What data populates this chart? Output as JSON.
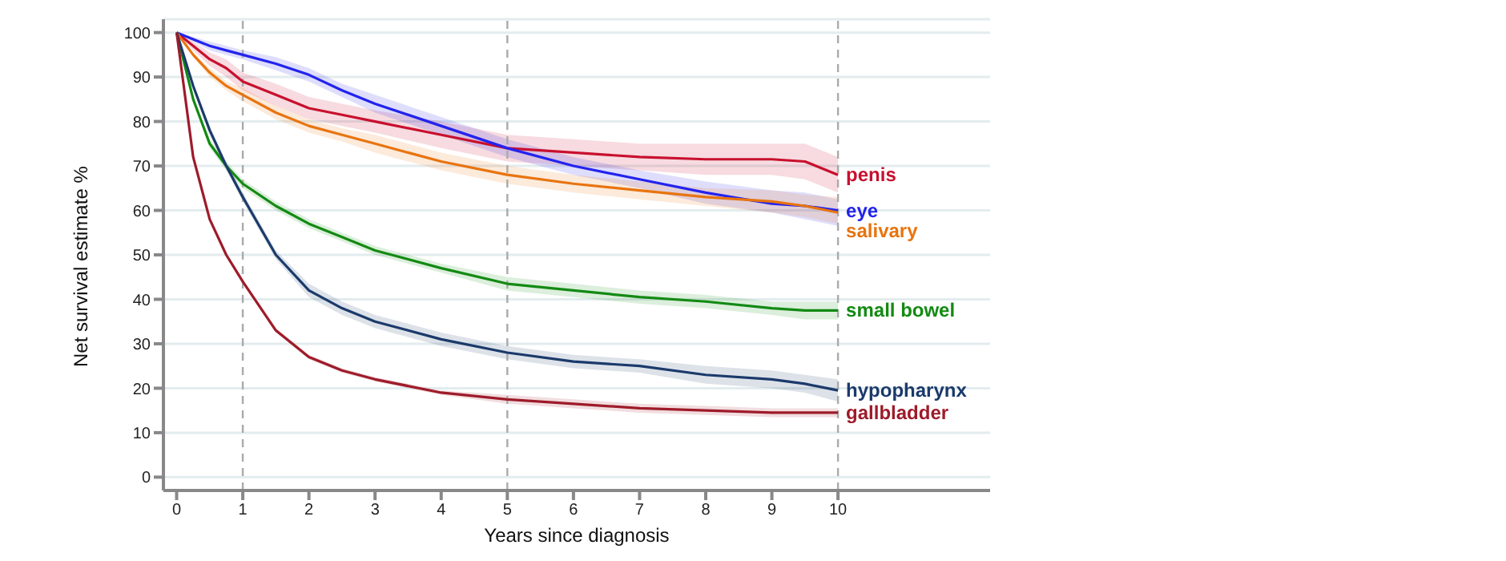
{
  "chart_data": {
    "type": "line",
    "xlabel": "Years since diagnosis",
    "ylabel": "Net survival estimate %",
    "x": [
      0,
      0.25,
      0.5,
      0.75,
      1,
      1.5,
      2,
      2.5,
      3,
      4,
      5,
      6,
      7,
      8,
      9,
      9.5,
      10
    ],
    "series": [
      {
        "name": "penis",
        "color": "#c8102e",
        "values": [
          100,
          97,
          94,
          92,
          89,
          86,
          83,
          81.5,
          80,
          77,
          74,
          73,
          72,
          71.5,
          71.5,
          71,
          68
        ],
        "lower": [
          100,
          96,
          92.5,
          90,
          87,
          83.5,
          80.5,
          79,
          77.5,
          74,
          71,
          70,
          69,
          68,
          68,
          67,
          64
        ],
        "upper": [
          100,
          98,
          95.5,
          94,
          91,
          88.5,
          85.5,
          84,
          82.5,
          80,
          77,
          76,
          75,
          75,
          75,
          75,
          72
        ]
      },
      {
        "name": "eye",
        "color": "#2323ee",
        "values": [
          100,
          98.5,
          97,
          96,
          95,
          93,
          90.5,
          87,
          84,
          79,
          74,
          70,
          67,
          64,
          61.5,
          61,
          60
        ],
        "lower": [
          100,
          98,
          96,
          95,
          94,
          91.5,
          89,
          85.5,
          82,
          77,
          72,
          68,
          65,
          61.5,
          59.5,
          58,
          56.5
        ],
        "upper": [
          100,
          99,
          98,
          97,
          96,
          94.5,
          92,
          88.5,
          86,
          81,
          76,
          72,
          69,
          66.5,
          64.5,
          64,
          62.5
        ]
      },
      {
        "name": "salivary",
        "color": "#e8740f",
        "values": [
          100,
          95,
          91,
          88,
          86,
          82,
          79,
          77,
          75,
          71,
          68,
          66,
          64.5,
          63,
          62,
          61,
          59.5
        ],
        "lower": [
          100,
          94.5,
          90,
          87,
          84.5,
          80.5,
          77.5,
          75.5,
          73,
          69,
          66,
          64,
          62.5,
          61,
          59.5,
          58.5,
          57
        ],
        "upper": [
          100,
          95.5,
          92,
          89,
          87.5,
          83.5,
          80.5,
          78.5,
          77,
          73,
          70,
          68,
          66.5,
          65,
          64.5,
          63.5,
          63
        ]
      },
      {
        "name": "small bowel",
        "color": "#138a13",
        "values": [
          100,
          85,
          75,
          70,
          66,
          61,
          57,
          54,
          51,
          47,
          43.5,
          42,
          40.5,
          39.5,
          38,
          37.5,
          37.5
        ],
        "lower": [
          100,
          84.5,
          74,
          69,
          65,
          60,
          56,
          53,
          50,
          46,
          42,
          40.5,
          39,
          38,
          36.5,
          35.5,
          35.5
        ],
        "upper": [
          100,
          85.5,
          76,
          71,
          67,
          62,
          58,
          55,
          52,
          48,
          45,
          43.5,
          42,
          41,
          39.5,
          39.5,
          39.5
        ]
      },
      {
        "name": "hypopharynx",
        "color": "#1b3a6b",
        "values": [
          100,
          88,
          78,
          70,
          63,
          50,
          42,
          38,
          35,
          31,
          28,
          26,
          25,
          23,
          22,
          21,
          19.5
        ],
        "lower": [
          100,
          87.5,
          77,
          69,
          62,
          49,
          40.5,
          36.5,
          33.5,
          29.5,
          26.5,
          24.5,
          23.5,
          21,
          20,
          19,
          17
        ],
        "upper": [
          100,
          88.5,
          79,
          71,
          64,
          51,
          43.5,
          39.5,
          36.5,
          32.5,
          29.5,
          27.5,
          26.5,
          25,
          24,
          23,
          22
        ]
      },
      {
        "name": "gallbladder",
        "color": "#9e1b2a",
        "values": [
          100,
          72,
          58,
          50,
          44,
          33,
          27,
          24,
          22,
          19,
          17.5,
          16.5,
          15.5,
          15,
          14.5,
          14.5,
          14.5
        ],
        "lower": [
          100,
          71.5,
          57.5,
          49.5,
          43.5,
          32.5,
          26.5,
          23.5,
          21.5,
          18.5,
          16.5,
          15.5,
          14.5,
          14,
          13.5,
          13.5,
          13.5
        ],
        "upper": [
          100,
          72.5,
          58.5,
          50.5,
          44.5,
          33.5,
          27.5,
          24.5,
          22.5,
          19.5,
          18.5,
          17.5,
          16.5,
          16,
          15.5,
          15.5,
          15.5
        ]
      }
    ],
    "xlim": [
      -0.2,
      12.3
    ],
    "xticks": [
      0,
      1,
      2,
      3,
      4,
      5,
      6,
      7,
      8,
      9,
      10
    ],
    "ylim": [
      -3,
      103
    ],
    "yticks": [
      0,
      10,
      20,
      30,
      40,
      50,
      60,
      70,
      80,
      90,
      100
    ],
    "grid": "y",
    "ref_lines": [
      {
        "axis": "x",
        "value": 1,
        "color": "#aaaaaa",
        "line_style": "dashed"
      },
      {
        "axis": "x",
        "value": 5,
        "color": "#aaaaaa",
        "line_style": "dashed"
      },
      {
        "axis": "x",
        "value": 10,
        "color": "#aaaaaa",
        "line_style": "dashed"
      }
    ]
  }
}
